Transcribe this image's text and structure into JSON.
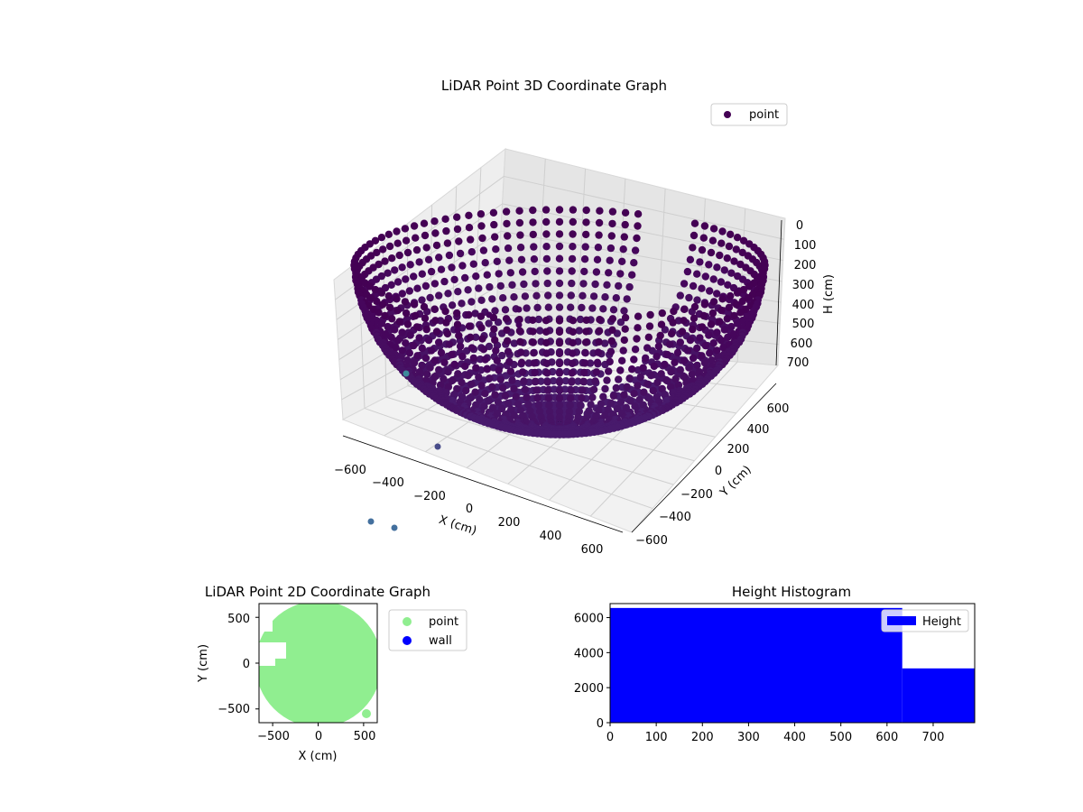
{
  "chart_data": [
    {
      "type": "scatter",
      "title": "LiDAR Point 3D Coordinate Graph",
      "xlabel": "X (cm)",
      "ylabel": "Y (cm)",
      "zlabel": "H (cm)",
      "x_ticks": [
        "−600",
        "−400",
        "−200",
        "0",
        "200",
        "400",
        "600"
      ],
      "y_ticks": [
        "600",
        "400",
        "200",
        "0",
        "−200",
        "−400",
        "−600"
      ],
      "z_ticks": [
        "0",
        "100",
        "200",
        "300",
        "400",
        "500",
        "600",
        "700"
      ],
      "xlim": [
        -650,
        650
      ],
      "ylim": [
        -650,
        650
      ],
      "zlim": [
        750,
        0
      ],
      "z_inverted": true,
      "legend": {
        "entries": [
          "point"
        ],
        "position": "upper-right"
      },
      "series": [
        {
          "name": "point",
          "color": "#440154",
          "shape": "hemispherical bowl of points, colored by height (viridis)"
        }
      ],
      "grid": true
    },
    {
      "type": "scatter",
      "title": "LiDAR Point 2D Coordinate Graph",
      "xlabel": "X (cm)",
      "ylabel": "Y (cm)",
      "x_ticks": [
        "−500",
        "0",
        "500"
      ],
      "y_ticks": [
        "500",
        "0",
        "−500"
      ],
      "xlim": [
        -650,
        650
      ],
      "ylim": [
        -650,
        650
      ],
      "legend": {
        "entries": [
          "point",
          "wall"
        ],
        "position": "outside-right"
      },
      "series": [
        {
          "name": "point",
          "color": "#90ee90"
        },
        {
          "name": "wall",
          "color": "#0000ff"
        }
      ]
    },
    {
      "type": "bar",
      "title": "Height Histogram",
      "x_ticks": [
        "0",
        "100",
        "200",
        "300",
        "400",
        "500",
        "600",
        "700"
      ],
      "y_ticks": [
        "0",
        "2000",
        "4000",
        "6000"
      ],
      "xlim": [
        0,
        790
      ],
      "ylim": [
        0,
        6800
      ],
      "bins": [
        {
          "from": 0,
          "to": 633,
          "count": 6550
        },
        {
          "from": 633,
          "to": 790,
          "count": 3100
        }
      ],
      "legend": {
        "entries": [
          "Height"
        ],
        "position": "upper-right"
      },
      "color": "#0000ff"
    }
  ]
}
